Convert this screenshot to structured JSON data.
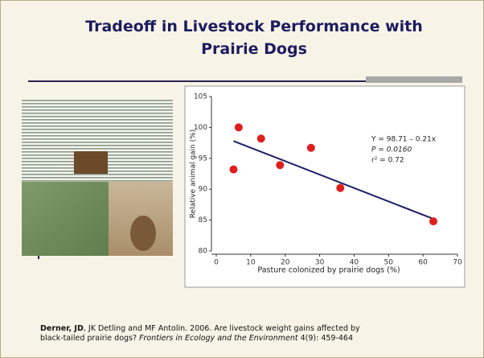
{
  "slide": {
    "title": "Tradeoff in Livestock Performance with Prairie Dogs",
    "citation": [
      {
        "text": "Derner, JD",
        "style": "bold"
      },
      {
        "text": ", JK Detling and MF Antolin.  2006. Are livestock weight gains affected by black-tailed prairie dogs? ",
        "style": "normal"
      },
      {
        "text": "Frontiers in Ecology and the Environment",
        "style": "italic"
      },
      {
        "text": " 4(9): 459-464",
        "style": "normal"
      }
    ]
  },
  "chart_data": {
    "type": "scatter",
    "x_label": "Pasture colonized by prairie dogs (%)",
    "y_label": "Relative animal gain (%)",
    "x": [
      5,
      6.5,
      13,
      18.5,
      27.5,
      36,
      63
    ],
    "values": [
      93.2,
      100,
      98.2,
      93.9,
      96.7,
      90.2,
      84.8
    ],
    "color": "#e01e1e",
    "fit_line": {
      "x": [
        5,
        63
      ],
      "y": [
        97.8,
        85.2
      ],
      "color": "#1f1f6b"
    },
    "annotations": [
      "Y = 98.71 – 0.21x",
      "P = 0.0160",
      "r² = 0.72"
    ],
    "xlim": [
      0,
      70
    ],
    "xticks": [
      0,
      10,
      20,
      30,
      40,
      50,
      60,
      70
    ],
    "ylim": [
      80,
      105
    ],
    "yticks": [
      80,
      85,
      90,
      95,
      100,
      105
    ],
    "grid": false
  }
}
